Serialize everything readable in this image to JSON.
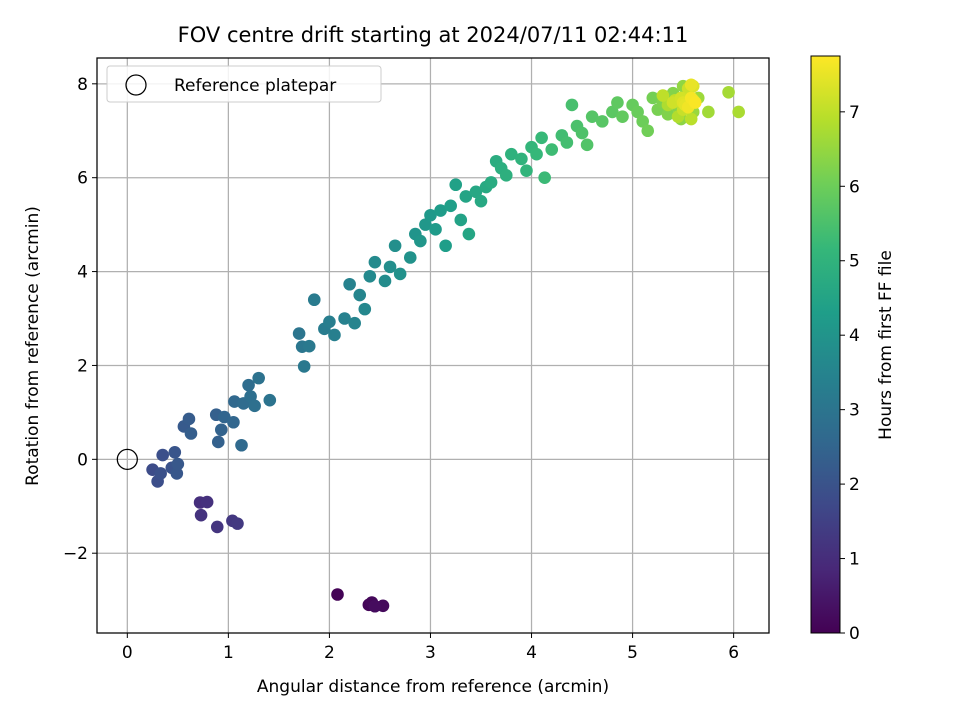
{
  "chart_data": {
    "type": "scatter",
    "title": "FOV centre drift starting at 2024/07/11 02:44:11",
    "xlabel": "Angular distance from reference (arcmin)",
    "ylabel": "Rotation from reference (arcmin)",
    "xlim": [
      -0.3,
      6.35
    ],
    "ylim": [
      -3.7,
      8.55
    ],
    "xticks": [
      0,
      1,
      2,
      3,
      4,
      5,
      6
    ],
    "yticks": [
      -2,
      0,
      2,
      4,
      6,
      8
    ],
    "ytick_labels": [
      "−2",
      "0",
      "2",
      "4",
      "6",
      "8"
    ],
    "grid": true,
    "legend": {
      "placement": "top-left",
      "entries": [
        "Reference platepar"
      ]
    },
    "reference_point": {
      "x": 0,
      "y": 0
    },
    "colorbar": {
      "label": "Hours from first FF file",
      "colormap": "viridis",
      "range": [
        0,
        7.75
      ],
      "ticks": [
        0,
        1,
        2,
        3,
        4,
        5,
        6,
        7
      ]
    },
    "points": [
      [
        2.08,
        -2.88,
        0.05
      ],
      [
        2.39,
        -3.1,
        0.1
      ],
      [
        2.42,
        -3.05,
        0.15
      ],
      [
        2.53,
        -3.12,
        0.2
      ],
      [
        2.45,
        -3.13,
        0.25
      ],
      [
        0.72,
        -0.92,
        1.05
      ],
      [
        0.79,
        -0.91,
        1.1
      ],
      [
        0.73,
        -1.19,
        1.15
      ],
      [
        0.89,
        -1.44,
        1.2
      ],
      [
        1.04,
        -1.31,
        1.25
      ],
      [
        1.09,
        -1.37,
        1.3
      ],
      [
        0.25,
        -0.22,
        1.8
      ],
      [
        0.3,
        -0.47,
        1.85
      ],
      [
        0.35,
        0.09,
        1.9
      ],
      [
        0.33,
        -0.3,
        1.95
      ],
      [
        0.44,
        -0.18,
        2.0
      ],
      [
        0.47,
        0.15,
        2.05
      ],
      [
        0.49,
        -0.3,
        2.1
      ],
      [
        0.5,
        -0.1,
        2.15
      ],
      [
        0.56,
        0.7,
        2.2
      ],
      [
        0.61,
        0.86,
        2.25
      ],
      [
        0.63,
        0.55,
        2.3
      ],
      [
        0.88,
        0.95,
        2.35
      ],
      [
        0.9,
        0.37,
        2.4
      ],
      [
        0.93,
        0.63,
        2.45
      ],
      [
        0.96,
        0.9,
        2.5
      ],
      [
        1.05,
        0.79,
        2.55
      ],
      [
        1.06,
        1.23,
        2.6
      ],
      [
        1.13,
        0.3,
        2.65
      ],
      [
        1.15,
        1.19,
        2.7
      ],
      [
        1.2,
        1.58,
        2.75
      ],
      [
        1.22,
        1.34,
        2.8
      ],
      [
        1.26,
        1.14,
        2.85
      ],
      [
        1.3,
        1.73,
        2.9
      ],
      [
        1.41,
        1.26,
        2.95
      ],
      [
        1.7,
        2.68,
        3.0
      ],
      [
        1.73,
        2.4,
        3.05
      ],
      [
        1.75,
        1.98,
        3.1
      ],
      [
        1.8,
        2.41,
        3.15
      ],
      [
        1.85,
        3.4,
        3.2
      ],
      [
        1.95,
        2.78,
        3.25
      ],
      [
        2.0,
        2.93,
        3.3
      ],
      [
        2.05,
        2.65,
        3.35
      ],
      [
        2.15,
        3.0,
        3.4
      ],
      [
        2.2,
        3.73,
        3.45
      ],
      [
        2.25,
        2.9,
        3.5
      ],
      [
        2.3,
        3.5,
        3.55
      ],
      [
        2.35,
        3.2,
        3.6
      ],
      [
        2.4,
        3.9,
        3.65
      ],
      [
        2.45,
        4.2,
        3.7
      ],
      [
        2.55,
        3.8,
        3.75
      ],
      [
        2.6,
        4.1,
        3.8
      ],
      [
        2.65,
        4.55,
        3.85
      ],
      [
        2.7,
        3.95,
        3.9
      ],
      [
        2.8,
        4.3,
        3.95
      ],
      [
        2.85,
        4.8,
        4.0
      ],
      [
        2.9,
        4.65,
        4.05
      ],
      [
        2.95,
        5.0,
        4.1
      ],
      [
        3.0,
        5.2,
        4.15
      ],
      [
        3.05,
        4.9,
        4.2
      ],
      [
        3.1,
        5.3,
        4.25
      ],
      [
        3.15,
        4.55,
        4.3
      ],
      [
        3.2,
        5.4,
        4.35
      ],
      [
        3.25,
        5.85,
        4.4
      ],
      [
        3.3,
        5.1,
        4.45
      ],
      [
        3.35,
        5.6,
        4.5
      ],
      [
        3.38,
        4.8,
        4.55
      ],
      [
        3.45,
        5.7,
        4.6
      ],
      [
        3.5,
        5.5,
        4.65
      ],
      [
        3.55,
        5.8,
        4.7
      ],
      [
        3.6,
        5.9,
        4.75
      ],
      [
        3.65,
        6.35,
        4.8
      ],
      [
        3.7,
        6.2,
        4.85
      ],
      [
        3.75,
        6.05,
        4.9
      ],
      [
        3.8,
        6.5,
        4.95
      ],
      [
        3.9,
        6.4,
        5.0
      ],
      [
        3.95,
        6.15,
        5.05
      ],
      [
        4.0,
        6.65,
        5.1
      ],
      [
        4.05,
        6.5,
        5.15
      ],
      [
        4.1,
        6.85,
        5.2
      ],
      [
        4.13,
        6.0,
        5.25
      ],
      [
        4.2,
        6.6,
        5.3
      ],
      [
        4.3,
        6.9,
        5.35
      ],
      [
        4.35,
        6.75,
        5.4
      ],
      [
        4.4,
        7.55,
        5.45
      ],
      [
        4.45,
        7.1,
        5.5
      ],
      [
        4.5,
        6.95,
        5.55
      ],
      [
        4.55,
        6.7,
        5.6
      ],
      [
        4.6,
        7.3,
        5.65
      ],
      [
        4.7,
        7.2,
        5.7
      ],
      [
        4.8,
        7.4,
        5.75
      ],
      [
        4.85,
        7.6,
        5.8
      ],
      [
        4.9,
        7.3,
        5.85
      ],
      [
        5.0,
        7.55,
        5.9
      ],
      [
        5.05,
        7.4,
        5.95
      ],
      [
        5.1,
        7.2,
        6.0
      ],
      [
        5.15,
        7.0,
        6.05
      ],
      [
        5.2,
        7.7,
        6.1
      ],
      [
        5.25,
        7.45,
        6.15
      ],
      [
        5.3,
        7.6,
        6.2
      ],
      [
        5.35,
        7.35,
        6.25
      ],
      [
        5.4,
        7.8,
        6.3
      ],
      [
        5.45,
        7.5,
        6.35
      ],
      [
        5.48,
        7.25,
        6.4
      ],
      [
        5.5,
        7.95,
        6.45
      ],
      [
        5.55,
        7.6,
        6.5
      ],
      [
        5.6,
        7.4,
        6.55
      ],
      [
        5.65,
        7.7,
        6.6
      ],
      [
        5.75,
        7.4,
        6.65
      ],
      [
        5.95,
        7.82,
        6.7
      ],
      [
        6.05,
        7.4,
        6.75
      ],
      [
        5.35,
        7.55,
        6.8
      ],
      [
        5.45,
        7.3,
        6.85
      ],
      [
        5.52,
        7.7,
        6.9
      ],
      [
        5.58,
        7.25,
        6.95
      ],
      [
        5.3,
        7.75,
        7.0
      ],
      [
        5.42,
        7.65,
        7.05
      ],
      [
        5.5,
        7.45,
        7.1
      ],
      [
        5.55,
        7.9,
        7.15
      ],
      [
        5.4,
        7.6,
        7.2
      ],
      [
        5.48,
        7.7,
        7.25
      ],
      [
        5.55,
        7.55,
        7.3
      ],
      [
        5.6,
        7.95,
        7.35
      ],
      [
        5.5,
        7.6,
        7.4
      ],
      [
        5.52,
        7.55,
        7.45
      ],
      [
        5.58,
        7.98,
        7.5
      ],
      [
        5.6,
        7.65,
        7.55
      ],
      [
        5.55,
        7.5,
        7.6
      ],
      [
        5.58,
        7.7,
        7.65
      ],
      [
        5.62,
        7.6,
        7.7
      ]
    ]
  }
}
